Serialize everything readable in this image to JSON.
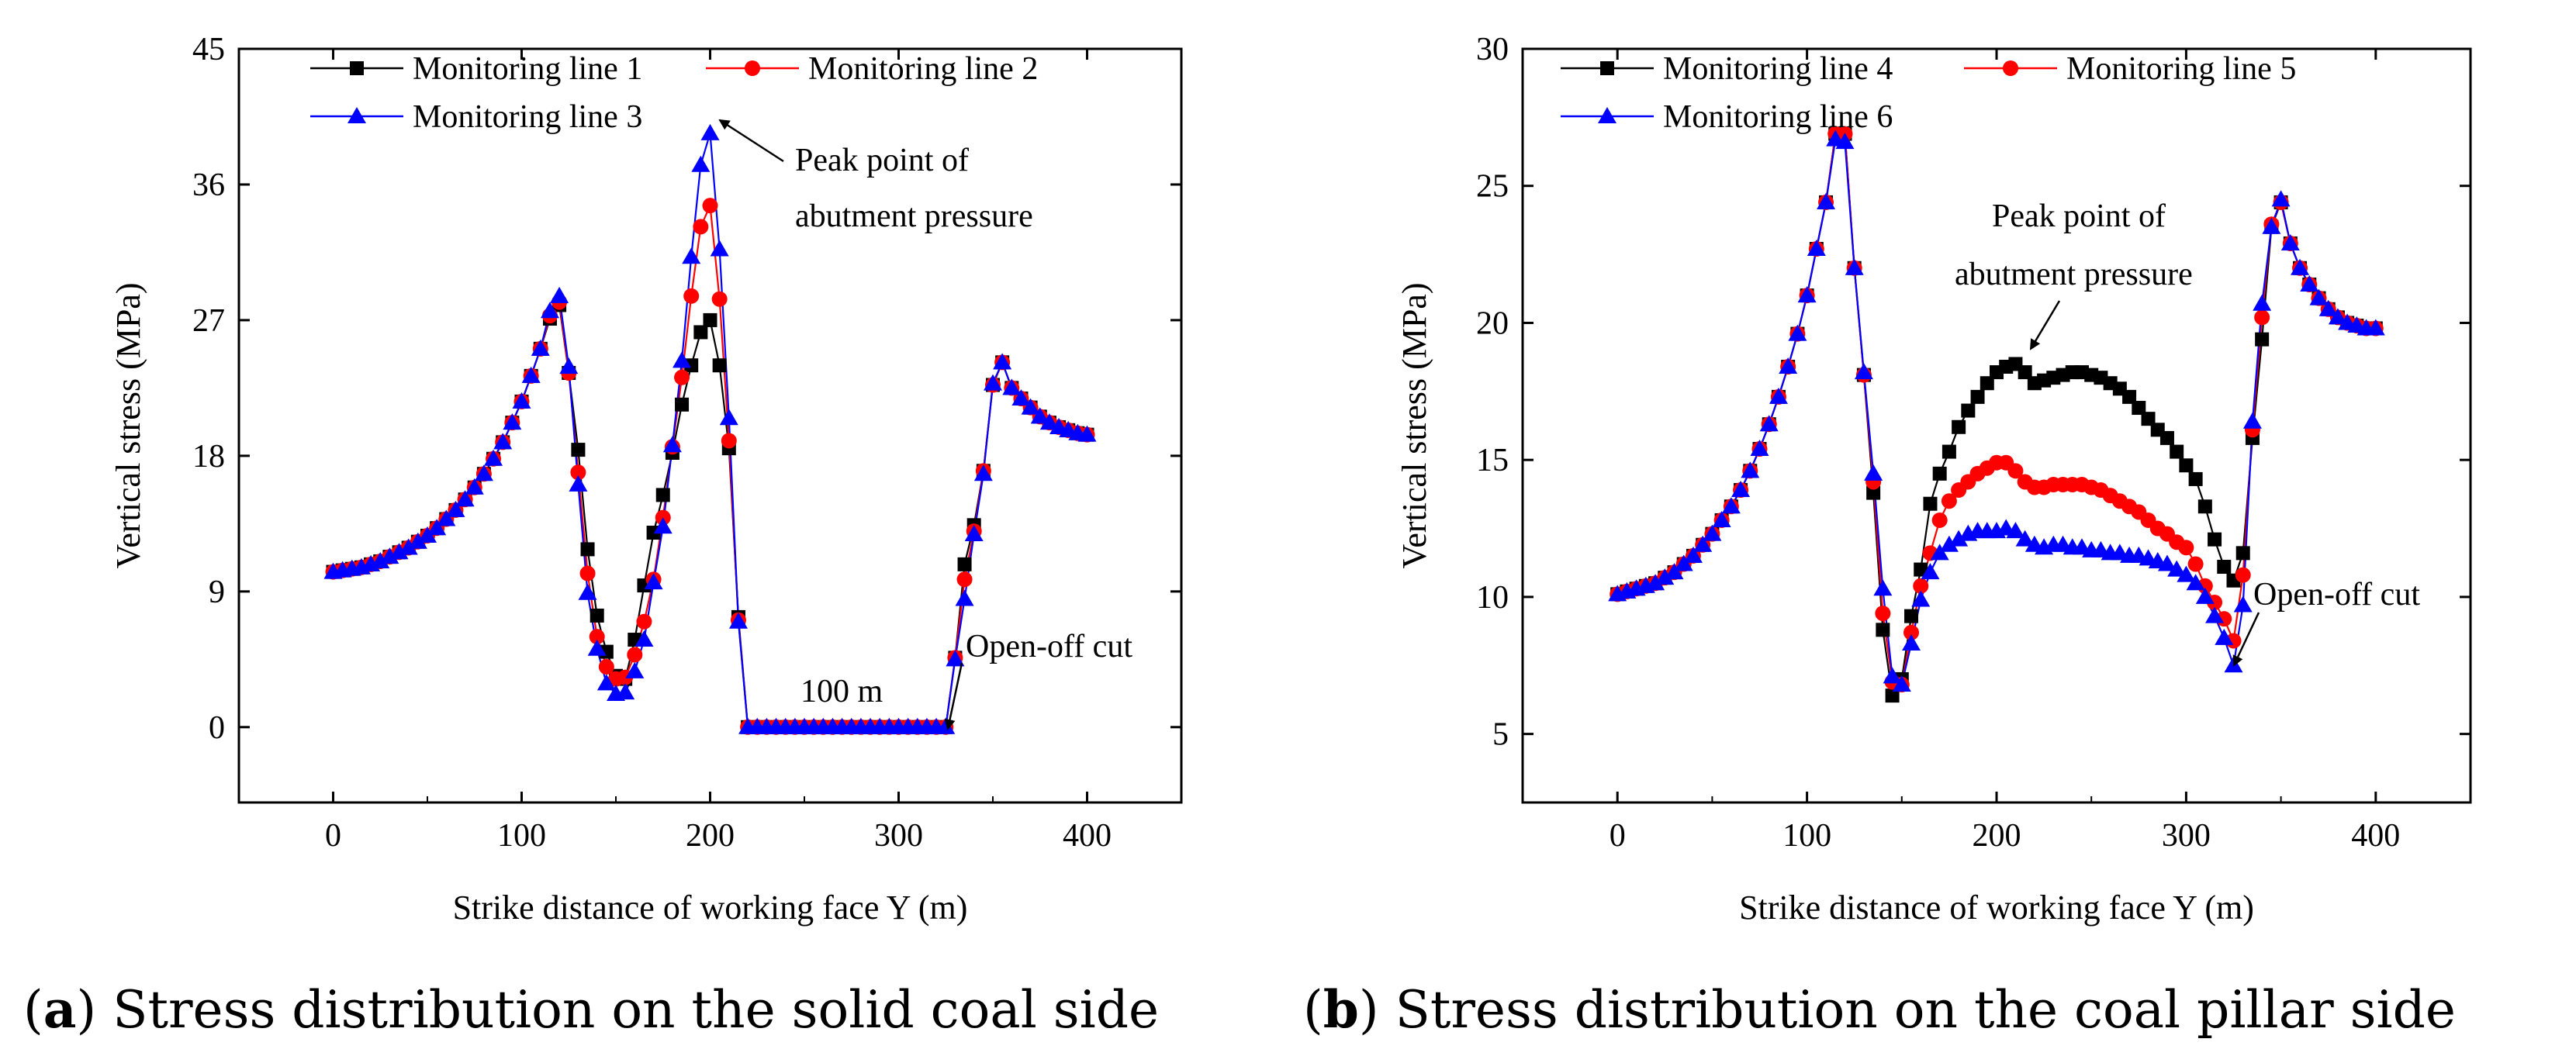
{
  "captions": [
    {
      "letter": "a",
      "text": " Stress distribution on the solid coal side"
    },
    {
      "letter": "b",
      "text": " Stress distribution on the coal pillar side"
    }
  ],
  "chart_data": [
    {
      "type": "line",
      "xlabel": "Strike distance of working face Y (m)",
      "ylabel": "Vertical stress (MPa)",
      "xlim": [
        -50,
        450
      ],
      "ylim": [
        -5,
        45
      ],
      "xticks": [
        0,
        100,
        200,
        300,
        400
      ],
      "yticks": [
        0,
        9,
        18,
        27,
        36,
        45
      ],
      "legend_position": "top-left",
      "x": [
        0,
        5,
        10,
        15,
        20,
        25,
        30,
        35,
        40,
        45,
        50,
        55,
        60,
        65,
        70,
        75,
        80,
        85,
        90,
        95,
        100,
        105,
        110,
        115,
        120,
        125,
        130,
        135,
        140,
        145,
        150,
        155,
        160,
        165,
        170,
        175,
        180,
        185,
        190,
        195,
        200,
        205,
        210,
        215,
        220,
        225,
        230,
        235,
        240,
        245,
        250,
        255,
        260,
        265,
        270,
        275,
        280,
        285,
        290,
        295,
        300,
        305,
        310,
        315,
        320,
        325,
        330,
        335,
        340,
        345,
        350,
        355,
        360,
        365,
        370,
        375,
        380,
        385,
        390,
        395,
        400
      ],
      "series": [
        {
          "name": "Monitoring line 1",
          "color": "#000000",
          "marker": "square",
          "values": [
            10.3,
            10.4,
            10.5,
            10.6,
            10.8,
            11.0,
            11.3,
            11.6,
            11.9,
            12.3,
            12.7,
            13.2,
            13.8,
            14.4,
            15.1,
            15.9,
            16.8,
            17.8,
            18.9,
            20.2,
            21.6,
            23.3,
            25.1,
            27.1,
            28.0,
            23.5,
            18.4,
            11.8,
            7.4,
            5.0,
            3.4,
            3.2,
            5.8,
            9.4,
            12.9,
            15.4,
            18.2,
            21.4,
            24.0,
            26.2,
            27.0,
            24.0,
            18.5,
            7.3,
            0,
            0,
            0,
            0,
            0,
            0,
            0,
            0,
            0,
            0,
            0,
            0,
            0,
            0,
            0,
            0,
            0,
            0,
            0,
            0,
            0,
            0,
            4.6,
            10.8,
            13.4,
            17.0,
            22.7,
            24.2,
            22.5,
            21.8,
            21.2,
            20.6,
            20.2,
            19.9,
            19.7,
            19.5,
            19.4
          ]
        },
        {
          "name": "Monitoring line 2",
          "color": "#ff0000",
          "marker": "circle",
          "values": [
            10.3,
            10.4,
            10.5,
            10.6,
            10.8,
            11.0,
            11.3,
            11.6,
            11.9,
            12.3,
            12.7,
            13.2,
            13.8,
            14.4,
            15.1,
            15.9,
            16.8,
            17.8,
            18.9,
            20.2,
            21.6,
            23.3,
            25.1,
            27.3,
            28.2,
            23.5,
            16.9,
            10.2,
            6.0,
            4.0,
            3.2,
            3.3,
            4.8,
            7.0,
            9.8,
            13.9,
            18.6,
            23.2,
            28.6,
            33.2,
            34.6,
            28.4,
            19.0,
            7.1,
            0,
            0,
            0,
            0,
            0,
            0,
            0,
            0,
            0,
            0,
            0,
            0,
            0,
            0,
            0,
            0,
            0,
            0,
            0,
            0,
            0,
            0,
            4.6,
            9.8,
            13.0,
            17.0,
            22.7,
            24.2,
            22.5,
            21.8,
            21.2,
            20.6,
            20.2,
            19.9,
            19.7,
            19.5,
            19.4
          ]
        },
        {
          "name": "Monitoring line 3",
          "color": "#0000ff",
          "marker": "triangle",
          "values": [
            10.3,
            10.4,
            10.5,
            10.6,
            10.8,
            11.0,
            11.3,
            11.6,
            11.9,
            12.3,
            12.7,
            13.2,
            13.8,
            14.4,
            15.1,
            15.9,
            16.8,
            17.8,
            18.9,
            20.2,
            21.6,
            23.3,
            25.1,
            27.6,
            28.6,
            23.9,
            16.1,
            8.9,
            5.2,
            2.9,
            2.2,
            2.3,
            3.7,
            5.8,
            9.6,
            13.3,
            18.7,
            24.3,
            31.2,
            37.3,
            39.4,
            31.7,
            20.5,
            7.0,
            0,
            0,
            0,
            0,
            0,
            0,
            0,
            0,
            0,
            0,
            0,
            0,
            0,
            0,
            0,
            0,
            0,
            0,
            0,
            0,
            0,
            0,
            4.5,
            8.5,
            12.8,
            16.8,
            22.8,
            24.2,
            22.5,
            21.8,
            21.2,
            20.6,
            20.2,
            19.9,
            19.7,
            19.5,
            19.4
          ]
        }
      ],
      "annotations": [
        "Peak point of",
        "abutment pressure",
        "Open-off cut",
        "100 m"
      ]
    },
    {
      "type": "line",
      "xlabel": "Strike distance of working face Y (m)",
      "ylabel": "Vertical stress (MPa)",
      "xlim": [
        -50,
        450
      ],
      "ylim": [
        2.5,
        30
      ],
      "xticks": [
        0,
        100,
        200,
        300,
        400
      ],
      "yticks": [
        5,
        10,
        15,
        20,
        25,
        30
      ],
      "legend_position": "top-left",
      "x": [
        0,
        5,
        10,
        15,
        20,
        25,
        30,
        35,
        40,
        45,
        50,
        55,
        60,
        65,
        70,
        75,
        80,
        85,
        90,
        95,
        100,
        105,
        110,
        115,
        120,
        125,
        130,
        135,
        140,
        145,
        150,
        155,
        160,
        165,
        170,
        175,
        180,
        185,
        190,
        195,
        200,
        205,
        210,
        215,
        220,
        225,
        230,
        235,
        240,
        245,
        250,
        255,
        260,
        265,
        270,
        275,
        280,
        285,
        290,
        295,
        300,
        305,
        310,
        315,
        320,
        325,
        330,
        335,
        340,
        345,
        350,
        355,
        360,
        365,
        370,
        375,
        380,
        385,
        390,
        395,
        400
      ],
      "series": [
        {
          "name": "Monitoring line 4",
          "color": "#000000",
          "marker": "square",
          "values": [
            10.1,
            10.2,
            10.3,
            10.4,
            10.5,
            10.7,
            10.9,
            11.2,
            11.5,
            11.9,
            12.3,
            12.8,
            13.3,
            13.9,
            14.6,
            15.4,
            16.3,
            17.3,
            18.4,
            19.6,
            21.0,
            22.7,
            24.4,
            26.9,
            26.9,
            22.0,
            18.1,
            13.8,
            8.8,
            6.4,
            7.0,
            9.3,
            11.0,
            13.4,
            14.5,
            15.3,
            16.2,
            16.8,
            17.3,
            17.8,
            18.2,
            18.4,
            18.5,
            18.2,
            17.8,
            17.9,
            18.0,
            18.1,
            18.2,
            18.2,
            18.1,
            18.0,
            17.8,
            17.6,
            17.3,
            16.9,
            16.5,
            16.1,
            15.8,
            15.3,
            14.8,
            14.3,
            13.3,
            12.1,
            11.1,
            10.6,
            11.6,
            15.8,
            19.4,
            23.5,
            24.4,
            22.9,
            22.0,
            21.4,
            20.9,
            20.5,
            20.2,
            20.0,
            19.9,
            19.8,
            19.8
          ]
        },
        {
          "name": "Monitoring line 5",
          "color": "#ff0000",
          "marker": "circle",
          "values": [
            10.1,
            10.2,
            10.3,
            10.4,
            10.5,
            10.7,
            10.9,
            11.2,
            11.5,
            11.9,
            12.3,
            12.8,
            13.3,
            13.9,
            14.6,
            15.4,
            16.3,
            17.3,
            18.4,
            19.6,
            21.0,
            22.7,
            24.4,
            26.9,
            26.9,
            22.0,
            18.1,
            14.2,
            9.4,
            6.9,
            6.8,
            8.7,
            10.4,
            11.6,
            12.8,
            13.5,
            13.9,
            14.2,
            14.5,
            14.7,
            14.9,
            14.9,
            14.6,
            14.2,
            14.0,
            14.0,
            14.1,
            14.1,
            14.1,
            14.1,
            14.0,
            13.9,
            13.7,
            13.5,
            13.3,
            13.1,
            12.8,
            12.5,
            12.3,
            12.0,
            11.8,
            11.2,
            10.4,
            9.8,
            9.2,
            8.4,
            10.8,
            16.1,
            20.2,
            23.6,
            24.4,
            22.9,
            22.0,
            21.4,
            20.9,
            20.5,
            20.2,
            20.0,
            19.9,
            19.8,
            19.8
          ]
        },
        {
          "name": "Monitoring line 6",
          "color": "#0000ff",
          "marker": "triangle",
          "values": [
            10.1,
            10.2,
            10.3,
            10.4,
            10.5,
            10.7,
            10.9,
            11.2,
            11.5,
            11.9,
            12.3,
            12.8,
            13.3,
            13.9,
            14.6,
            15.4,
            16.3,
            17.3,
            18.4,
            19.6,
            21.0,
            22.7,
            24.4,
            26.7,
            26.6,
            22.0,
            18.2,
            14.5,
            10.3,
            7.1,
            6.8,
            8.3,
            9.9,
            10.9,
            11.6,
            11.9,
            12.1,
            12.3,
            12.4,
            12.4,
            12.4,
            12.5,
            12.4,
            12.1,
            11.9,
            11.8,
            11.9,
            11.9,
            11.8,
            11.8,
            11.7,
            11.7,
            11.6,
            11.6,
            11.5,
            11.5,
            11.4,
            11.3,
            11.2,
            11.0,
            10.8,
            10.5,
            10.0,
            9.3,
            8.5,
            7.5,
            9.7,
            16.4,
            20.7,
            23.5,
            24.5,
            22.9,
            22.0,
            21.4,
            20.9,
            20.5,
            20.2,
            20.0,
            19.9,
            19.8,
            19.8
          ]
        }
      ],
      "annotations": [
        "Peak point of",
        "abutment pressure",
        "Open-off cut"
      ]
    }
  ]
}
